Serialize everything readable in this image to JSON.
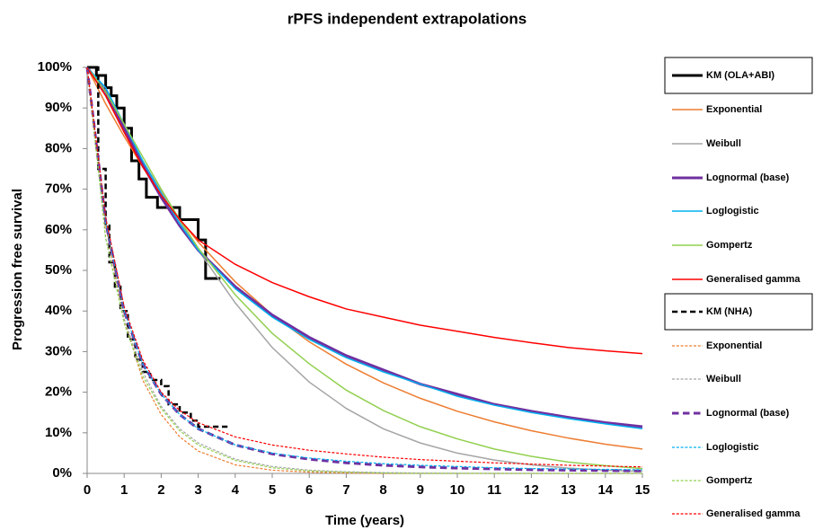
{
  "chart_data": {
    "type": "line",
    "title": "rPFS independent extrapolations",
    "x_label": "Time (years)",
    "y_label": "Progression free survival",
    "x": [
      0,
      0.5,
      1,
      1.5,
      2,
      2.5,
      3,
      4,
      5,
      6,
      7,
      8,
      9,
      10,
      11,
      12,
      13,
      14,
      15
    ],
    "xlim": [
      0,
      15
    ],
    "xticks": [
      0,
      1,
      2,
      3,
      4,
      5,
      6,
      7,
      8,
      9,
      10,
      11,
      12,
      13,
      14,
      15
    ],
    "ylim": [
      0,
      100
    ],
    "yticks": [
      {
        "value": 0,
        "label": "0%"
      },
      {
        "value": 10,
        "label": "10%"
      },
      {
        "value": 20,
        "label": "20%"
      },
      {
        "value": 30,
        "label": "30%"
      },
      {
        "value": 40,
        "label": "40%"
      },
      {
        "value": 50,
        "label": "50%"
      },
      {
        "value": 60,
        "label": "60%"
      },
      {
        "value": 70,
        "label": "70%"
      },
      {
        "value": 80,
        "label": "80%"
      },
      {
        "value": 90,
        "label": "90%"
      },
      {
        "value": 100,
        "label": "100%"
      }
    ],
    "series": [
      {
        "name": "KM (OLA+ABI)",
        "color": "#000000",
        "width": 3,
        "step": true,
        "x": [
          0,
          0.25,
          0.5,
          0.65,
          0.8,
          1.0,
          1.2,
          1.4,
          1.6,
          1.9,
          2.5,
          3.0,
          3.2,
          3.6
        ],
        "values": [
          100,
          98,
          95,
          93,
          90,
          85,
          77,
          72.5,
          68,
          65.5,
          62.5,
          57.5,
          48,
          48
        ]
      },
      {
        "name": "Exponential",
        "color": "#ed7d31",
        "width": 1.5,
        "values": [
          100,
          91,
          83,
          75.5,
          68.7,
          62.6,
          57,
          47.2,
          39.1,
          32.4,
          26.9,
          22.3,
          18.5,
          15.3,
          12.7,
          10.5,
          8.7,
          7.2,
          6
        ]
      },
      {
        "name": "Weibull",
        "color": "#a5a5a5",
        "width": 1.5,
        "values": [
          100,
          93,
          85,
          77,
          69.5,
          62,
          55,
          42,
          31,
          22.5,
          16,
          11,
          7.5,
          5,
          3.3,
          2.1,
          1.3,
          0.8,
          0.5
        ]
      },
      {
        "name": "Lognormal (base)",
        "color": "#7030a0",
        "width": 3,
        "values": [
          100,
          94,
          85,
          76,
          68,
          61,
          55,
          46,
          39,
          33.5,
          29,
          25.5,
          22,
          19.5,
          17,
          15.3,
          13.8,
          12.5,
          11.5
        ]
      },
      {
        "name": "Loglogistic",
        "color": "#00b0f0",
        "width": 1.5,
        "values": [
          100,
          95,
          86,
          77,
          69,
          61.5,
          55,
          45.5,
          38.5,
          33,
          28.5,
          25,
          22,
          19,
          16.8,
          15,
          13.5,
          12.2,
          11
        ]
      },
      {
        "name": "Gompertz",
        "color": "#92d050",
        "width": 1.5,
        "values": [
          100,
          94,
          86,
          78,
          70,
          62.5,
          55.5,
          44,
          34.5,
          27,
          20.5,
          15.5,
          11.5,
          8.5,
          6,
          4.2,
          2.8,
          1.9,
          1.2
        ]
      },
      {
        "name": "Generalised gamma",
        "color": "#ff0000",
        "width": 1.5,
        "values": [
          100,
          93,
          84,
          75.5,
          68.5,
          62.5,
          57.5,
          51.5,
          47,
          43.5,
          40.5,
          38.5,
          36.5,
          35,
          33.5,
          32.2,
          31,
          30.2,
          29.5
        ]
      },
      {
        "name": "KM (NHA)",
        "color": "#000000",
        "width": 2.5,
        "step": true,
        "dashed": true,
        "x": [
          0,
          0.3,
          0.5,
          0.6,
          0.75,
          0.9,
          1.1,
          1.3,
          1.5,
          1.7,
          2.0,
          2.2,
          2.5,
          2.8,
          3.0,
          3.8
        ],
        "values": [
          100,
          75,
          61,
          52,
          46,
          40,
          33,
          28,
          25,
          23,
          21.5,
          17,
          15,
          13,
          11.5,
          11.5
        ]
      },
      {
        "name": "Exponential",
        "color": "#ed7d31",
        "width": 1.2,
        "dashed": true,
        "values": [
          100,
          61,
          38,
          23,
          14.5,
          9,
          5.5,
          2.1,
          0.8,
          0.3,
          0.1,
          0,
          0,
          0,
          0,
          0,
          0,
          0,
          0
        ]
      },
      {
        "name": "Weibull",
        "color": "#a5a5a5",
        "width": 1.2,
        "dashed": true,
        "values": [
          100,
          58,
          38,
          25,
          16.5,
          11,
          7.5,
          3.5,
          1.7,
          0.8,
          0.4,
          0.2,
          0.1,
          0.05,
          0,
          0,
          0,
          0,
          0
        ]
      },
      {
        "name": "Lognormal (base)",
        "color": "#7030a0",
        "width": 3,
        "dashed": true,
        "values": [
          100,
          62,
          40,
          27,
          19.5,
          14.5,
          11,
          7,
          4.8,
          3.5,
          2.6,
          2,
          1.6,
          1.3,
          1.1,
          0.9,
          0.8,
          0.7,
          0.6
        ]
      },
      {
        "name": "Loglogistic",
        "color": "#00b0f0",
        "width": 1.2,
        "dashed": true,
        "values": [
          100,
          62,
          40,
          27,
          19.5,
          14.5,
          11,
          7,
          5,
          3.8,
          3,
          2.4,
          2,
          1.7,
          1.4,
          1.2,
          1.1,
          1,
          0.9
        ]
      },
      {
        "name": "Gompertz",
        "color": "#92d050",
        "width": 1.2,
        "dashed": true,
        "values": [
          100,
          58,
          37,
          24,
          16,
          10.5,
          7,
          3.2,
          1.4,
          0.6,
          0.3,
          0.1,
          0,
          0,
          0,
          0,
          0,
          0,
          0
        ]
      },
      {
        "name": "Generalised gamma",
        "color": "#ff0000",
        "width": 1.2,
        "dashed": true,
        "values": [
          100,
          63,
          41,
          28,
          20,
          15.5,
          12.5,
          9,
          7,
          5.7,
          4.8,
          4,
          3.4,
          3,
          2.6,
          2.3,
          2,
          1.8,
          1.6
        ]
      }
    ]
  }
}
